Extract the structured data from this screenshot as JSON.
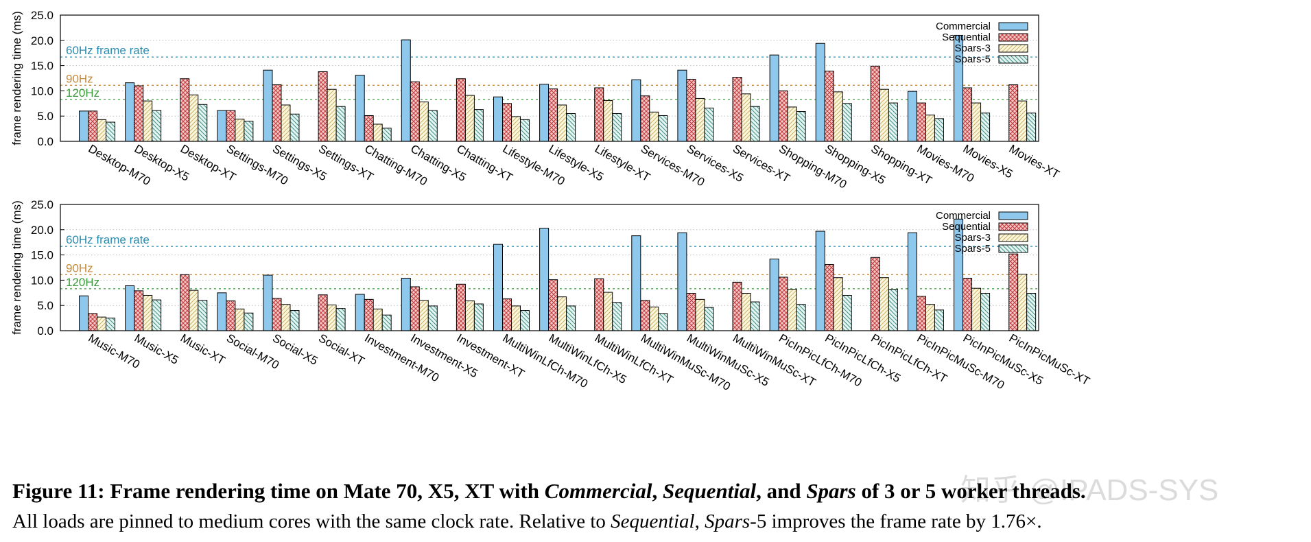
{
  "colors": {
    "commercial": "#8ec8ec",
    "sequential": "#c03a3a",
    "spars3": "#c8b46a",
    "spars5": "#3f8f86",
    "ref60": "#2a8bb0",
    "ref90": "#c88a3a",
    "ref120": "#3a9a3a"
  },
  "caption": {
    "prefix": "Figure 11: Frame rendering time on Mate 70, X5, XT with ",
    "commercial": "Commercial",
    "sep1": ", ",
    "sequential": "Sequential",
    "sep2": ", and ",
    "spars": "Spars",
    "suffix": " of 3 or 5 worker threads.",
    "line2_a": "All loads are pinned to medium cores with the same clock rate. Relative to ",
    "line2_seq": "Sequential",
    "line2_b": ", ",
    "line2_spars": "Spars",
    "line2_c": "-5 improves the frame rate by 1.76×."
  },
  "watermark": "知乎 @IPADS-SYS",
  "chart_data": [
    {
      "type": "bar",
      "ylabel": "frame rendering time (ms)",
      "ylim": [
        0,
        25
      ],
      "yticks": [
        "0.0",
        "5.0",
        "10.0",
        "15.0",
        "20.0",
        "25.0"
      ],
      "legend_position": "top-right",
      "reference_lines": [
        {
          "label": "60Hz frame rate",
          "value": 16.7
        },
        {
          "label": "90Hz",
          "value": 11.1
        },
        {
          "label": "120Hz",
          "value": 8.3
        }
      ],
      "categories": [
        "Desktop-M70",
        "Desktop-X5",
        "Desktop-XT",
        "Settings-M70",
        "Settings-X5",
        "Settings-XT",
        "Chatting-M70",
        "Chatting-X5",
        "Chatting-XT",
        "Lifestyle-M70",
        "Lifestyle-X5",
        "Lifestyle-XT",
        "Services-M70",
        "Services-X5",
        "Services-XT",
        "Shopping-M70",
        "Shopping-X5",
        "Shopping-XT",
        "Movies-M70",
        "Movies-X5",
        "Movies-XT"
      ],
      "series": [
        {
          "name": "Commercial",
          "values": [
            6.0,
            11.6,
            null,
            6.1,
            14.1,
            null,
            13.1,
            20.1,
            null,
            8.8,
            11.3,
            null,
            12.2,
            14.1,
            null,
            17.1,
            19.4,
            null,
            9.9,
            21.0,
            null
          ]
        },
        {
          "name": "Sequential",
          "values": [
            6.0,
            11.0,
            12.4,
            6.1,
            11.2,
            13.8,
            5.1,
            11.8,
            12.4,
            7.5,
            10.4,
            10.6,
            9.0,
            12.3,
            12.7,
            10.0,
            13.9,
            14.9,
            7.6,
            10.6,
            11.2
          ]
        },
        {
          "name": "Spars-3",
          "values": [
            4.3,
            8.0,
            9.2,
            4.4,
            7.2,
            10.3,
            3.4,
            7.8,
            9.1,
            4.9,
            7.2,
            8.1,
            5.8,
            8.5,
            9.4,
            6.8,
            9.8,
            10.3,
            5.2,
            7.6,
            8.0
          ]
        },
        {
          "name": "Spars-5",
          "values": [
            3.8,
            6.1,
            7.3,
            4.0,
            5.4,
            6.9,
            2.6,
            6.1,
            6.3,
            4.3,
            5.5,
            5.5,
            5.1,
            6.6,
            6.9,
            5.9,
            7.5,
            7.6,
            4.5,
            5.6,
            5.6
          ]
        }
      ]
    },
    {
      "type": "bar",
      "ylabel": "frame rendering time (ms)",
      "ylim": [
        0,
        25
      ],
      "yticks": [
        "0.0",
        "5.0",
        "10.0",
        "15.0",
        "20.0",
        "25.0"
      ],
      "legend_position": "top-right",
      "reference_lines": [
        {
          "label": "60Hz frame rate",
          "value": 16.7
        },
        {
          "label": "90Hz",
          "value": 11.1
        },
        {
          "label": "120Hz",
          "value": 8.3
        }
      ],
      "categories": [
        "Music-M70",
        "Music-X5",
        "Music-XT",
        "Social-M70",
        "Social-X5",
        "Social-XT",
        "Investment-M70",
        "Investment-X5",
        "Investment-XT",
        "MultiWinLfCh-M70",
        "MultiWinLfCh-X5",
        "MultiWinLfCh-XT",
        "MultiWinMuSc-M70",
        "MultiWinMuSc-X5",
        "MultiWinMuSc-XT",
        "PicInPicLfCh-M70",
        "PicInPicLfCh-X5",
        "PicInPicLfCh-XT",
        "PicInPicMuSc-M70",
        "PicInPicMuSc-X5",
        "PicInPicMuSc-XT"
      ],
      "series": [
        {
          "name": "Commercial",
          "values": [
            6.9,
            8.9,
            null,
            7.5,
            11.0,
            null,
            7.2,
            10.4,
            null,
            17.1,
            20.3,
            null,
            18.8,
            19.4,
            null,
            14.2,
            19.7,
            null,
            19.4,
            22.1,
            null
          ]
        },
        {
          "name": "Sequential",
          "values": [
            3.4,
            7.9,
            11.1,
            5.9,
            6.4,
            7.1,
            6.2,
            8.7,
            9.2,
            6.3,
            10.1,
            10.3,
            6.0,
            7.4,
            9.6,
            10.6,
            13.1,
            14.5,
            6.8,
            10.4,
            15.2
          ]
        },
        {
          "name": "Spars-3",
          "values": [
            2.7,
            7.0,
            8.0,
            4.3,
            5.2,
            5.1,
            4.3,
            6.0,
            5.9,
            4.9,
            6.7,
            7.6,
            4.7,
            6.2,
            7.4,
            8.2,
            10.5,
            10.5,
            5.2,
            8.4,
            11.2
          ]
        },
        {
          "name": "Spars-5",
          "values": [
            2.5,
            6.1,
            6.0,
            3.5,
            4.0,
            4.4,
            3.1,
            4.9,
            5.3,
            4.0,
            4.9,
            5.6,
            3.4,
            4.6,
            5.7,
            5.2,
            7.0,
            8.2,
            4.1,
            7.4,
            7.4
          ]
        }
      ]
    }
  ]
}
